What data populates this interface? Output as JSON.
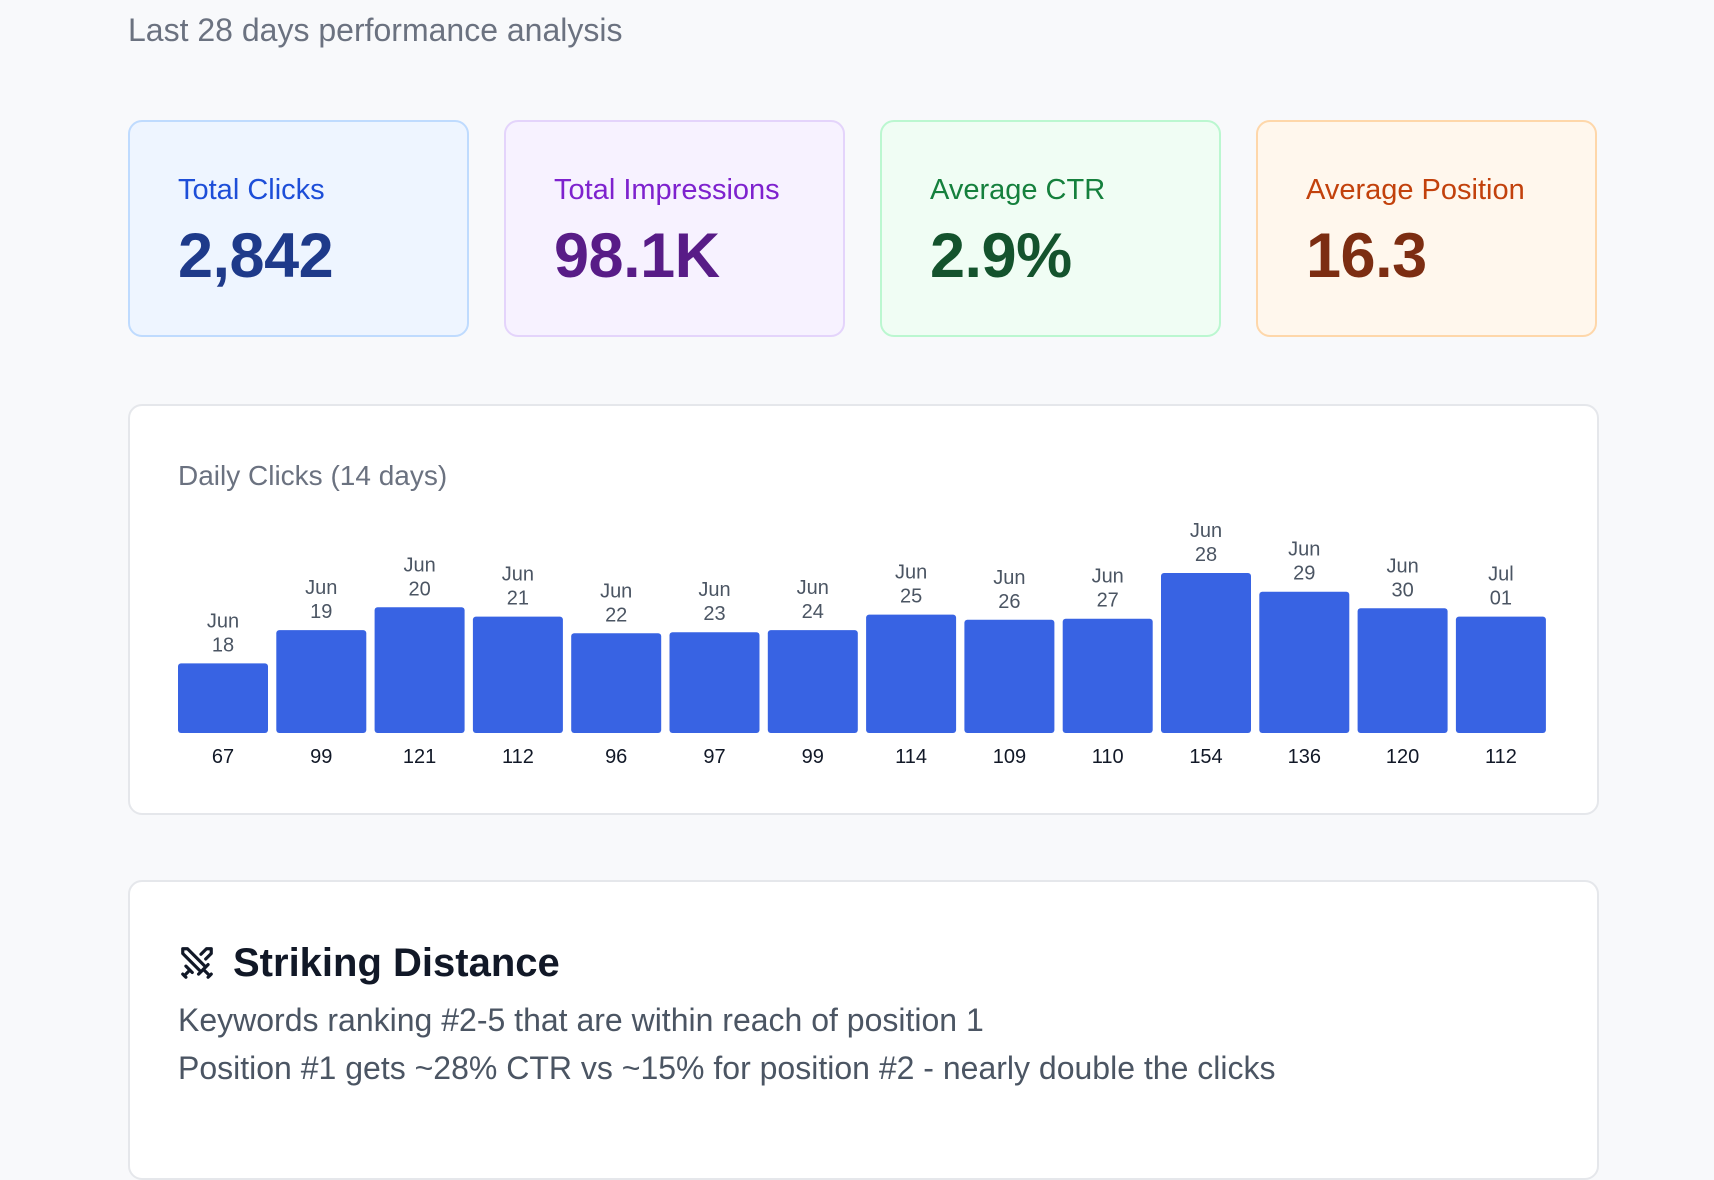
{
  "header": {
    "subtitle": "Last 28 days performance analysis"
  },
  "stats": [
    {
      "label": "Total Clicks",
      "value": "2,842"
    },
    {
      "label": "Total Impressions",
      "value": "98.1K"
    },
    {
      "label": "Average CTR",
      "value": "2.9%"
    },
    {
      "label": "Average Position",
      "value": "16.3"
    }
  ],
  "chart_card": {
    "title": "Daily Clicks (14 days)"
  },
  "chart_data": {
    "type": "bar",
    "title": "Daily Clicks (14 days)",
    "categories": [
      [
        "Jun",
        "18"
      ],
      [
        "Jun",
        "19"
      ],
      [
        "Jun",
        "20"
      ],
      [
        "Jun",
        "21"
      ],
      [
        "Jun",
        "22"
      ],
      [
        "Jun",
        "23"
      ],
      [
        "Jun",
        "24"
      ],
      [
        "Jun",
        "25"
      ],
      [
        "Jun",
        "26"
      ],
      [
        "Jun",
        "27"
      ],
      [
        "Jun",
        "28"
      ],
      [
        "Jun",
        "29"
      ],
      [
        "Jun",
        "30"
      ],
      [
        "Jul",
        "01"
      ]
    ],
    "values": [
      67,
      99,
      121,
      112,
      96,
      97,
      99,
      114,
      109,
      110,
      154,
      136,
      120,
      112
    ],
    "bar_color": "#3863e3",
    "ylim": [
      0,
      154
    ],
    "grid": false,
    "legend": false
  },
  "striking": {
    "title": "Striking Distance",
    "icon": "crossed-swords-icon",
    "line1": "Keywords ranking #2-5 that are within reach of position 1",
    "line2": "Position #1 gets ~28% CTR vs ~15% for position #2 - nearly double the clicks"
  }
}
